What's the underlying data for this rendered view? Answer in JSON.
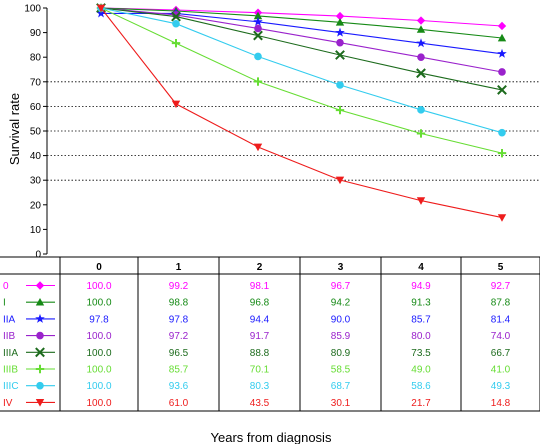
{
  "chart_data": {
    "type": "line",
    "ylabel": "Survival rate",
    "xlabel": "Years from diagnosis",
    "ylim": [
      0,
      100
    ],
    "yticks": [
      0,
      10,
      20,
      30,
      40,
      50,
      60,
      70,
      80,
      90,
      100
    ],
    "gridlines_y": [
      30,
      40,
      50,
      60,
      70
    ],
    "x": [
      "0",
      "1",
      "2",
      "3",
      "4",
      "5"
    ],
    "series": [
      {
        "name": "0",
        "color": "#ff00ff",
        "marker": "diamond",
        "values": [
          100.0,
          99.2,
          98.1,
          96.7,
          94.9,
          92.7
        ]
      },
      {
        "name": "I",
        "color": "#168a16",
        "marker": "triangle-up",
        "values": [
          100.0,
          98.8,
          96.8,
          94.2,
          91.3,
          87.8
        ]
      },
      {
        "name": "IIA",
        "color": "#1a1aff",
        "marker": "star",
        "values": [
          97.8,
          97.8,
          94.4,
          90.0,
          85.7,
          81.4
        ]
      },
      {
        "name": "IIB",
        "color": "#9a22cc",
        "marker": "circle",
        "values": [
          100.0,
          97.2,
          91.7,
          85.9,
          80.0,
          74.0
        ]
      },
      {
        "name": "IIIA",
        "color": "#1d6b1d",
        "marker": "x",
        "values": [
          100.0,
          96.5,
          88.8,
          80.9,
          73.5,
          66.7
        ]
      },
      {
        "name": "IIIB",
        "color": "#66dd33",
        "marker": "plus",
        "values": [
          100.0,
          85.7,
          70.1,
          58.5,
          49.0,
          41.0
        ]
      },
      {
        "name": "IIIC",
        "color": "#33ccee",
        "marker": "circle",
        "values": [
          100.0,
          93.6,
          80.3,
          68.7,
          58.6,
          49.3
        ]
      },
      {
        "name": "IV",
        "color": "#ee1c1c",
        "marker": "triangle-down",
        "values": [
          100.0,
          61.0,
          43.5,
          30.1,
          21.7,
          14.8
        ]
      }
    ],
    "table": {
      "headers": [
        "0",
        "1",
        "2",
        "3",
        "4",
        "5"
      ],
      "rows": [
        [
          "100.0",
          "99.2",
          "98.1",
          "96.7",
          "94.9",
          "92.7"
        ],
        [
          "100.0",
          "98.8",
          "96.8",
          "94.2",
          "91.3",
          "87.8"
        ],
        [
          "97.8",
          "97.8",
          "94.4",
          "90.0",
          "85.7",
          "81.4"
        ],
        [
          "100.0",
          "97.2",
          "91.7",
          "85.9",
          "80.0",
          "74.0"
        ],
        [
          "100.0",
          "96.5",
          "88.8",
          "80.9",
          "73.5",
          "66.7"
        ],
        [
          "100.0",
          "85.7",
          "70.1",
          "58.5",
          "49.0",
          "41.0"
        ],
        [
          "100.0",
          "93.6",
          "80.3",
          "68.7",
          "58.6",
          "49.3"
        ],
        [
          "100.0",
          "61.0",
          "43.5",
          "30.1",
          "21.7",
          "14.8"
        ]
      ]
    }
  }
}
